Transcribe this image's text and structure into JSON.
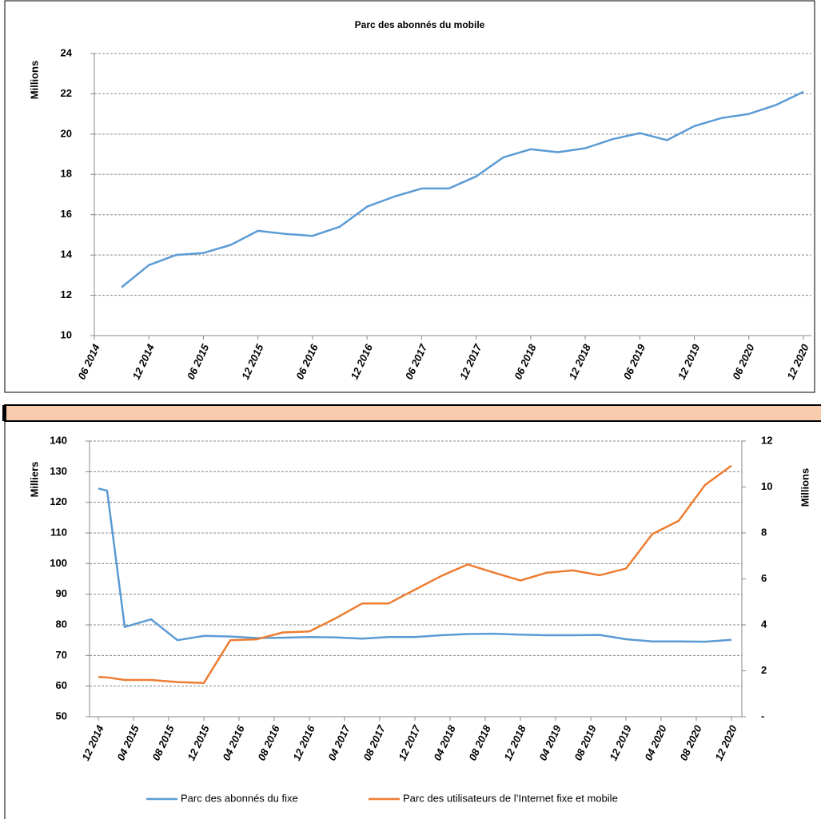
{
  "chart_data": [
    {
      "type": "line",
      "title": "Parc des abonnés du mobile",
      "ylabel": "Millions",
      "x": [
        "09 2014",
        "12 2014",
        "03 2015",
        "06 2015",
        "09 2015",
        "12 2015",
        "03 2016",
        "06 2016",
        "09 2016",
        "12 2016",
        "03 2017",
        "06 2017",
        "09 2017",
        "12 2017",
        "03 2018",
        "06 2018",
        "09 2018",
        "12 2018",
        "03 2019",
        "06 2019",
        "09 2019",
        "12 2019",
        "03 2020",
        "06 2020",
        "09 2020",
        "12 2020"
      ],
      "values": [
        12.4,
        13.5,
        14.0,
        14.1,
        14.5,
        15.2,
        15.05,
        14.95,
        15.4,
        16.4,
        16.9,
        17.3,
        17.3,
        17.9,
        18.85,
        19.25,
        19.1,
        19.3,
        19.75,
        20.05,
        19.7,
        20.4,
        20.8,
        21.0,
        21.45,
        22.1
      ],
      "color": "#5b9bd5",
      "xlim": [
        "06 2014",
        "12 2020"
      ],
      "xticks": [
        "06 2014",
        "12 2014",
        "06 2015",
        "12 2015",
        "06 2016",
        "12 2016",
        "06 2017",
        "12 2017",
        "06 2018",
        "12 2018",
        "06 2019",
        "12 2019",
        "06 2020",
        "12 2020"
      ],
      "ylim": [
        10,
        24
      ],
      "yticks": [
        10,
        12,
        14,
        16,
        18,
        20,
        22,
        24
      ],
      "grid": true
    },
    {
      "type": "line",
      "ylabel": "Milliers",
      "y2label": "Millions",
      "x": [
        "12 2014",
        "01 2015",
        "03 2015",
        "06 2015",
        "09 2015",
        "12 2015",
        "03 2016",
        "06 2016",
        "09 2016",
        "12 2016",
        "03 2017",
        "06 2017",
        "09 2017",
        "12 2017",
        "03 2018",
        "06 2018",
        "09 2018",
        "12 2018",
        "03 2019",
        "06 2019",
        "09 2019",
        "12 2019",
        "03 2020",
        "06 2020",
        "09 2020",
        "12 2020"
      ],
      "series": [
        {
          "name": "Parc des abonnés du fixe",
          "color": "#5b9bd5",
          "values": [
            124.5,
            123.8,
            79.3,
            81.8,
            75.0,
            76.4,
            76.2,
            75.7,
            75.8,
            76.0,
            75.9,
            75.5,
            76.0,
            76.0,
            76.6,
            77.0,
            77.1,
            76.8,
            76.6,
            76.6,
            76.7,
            75.3,
            74.6,
            74.6,
            74.5,
            75.1
          ]
        },
        {
          "name": "Parc des utilisateurs de l’Internet fixe et mobile",
          "color": "#ed7d31",
          "axis": "y2",
          "values": [
            1.73,
            1.71,
            1.6,
            1.6,
            1.51,
            1.47,
            3.33,
            3.37,
            3.67,
            3.71,
            4.29,
            4.93,
            4.93,
            5.53,
            6.13,
            6.63,
            6.27,
            5.93,
            6.27,
            6.37,
            6.16,
            6.45,
            7.95,
            8.53,
            10.09,
            10.93
          ]
        }
      ],
      "xlim": [
        "12 2014",
        "12 2020"
      ],
      "xticks": [
        "12 2014",
        "04 2015",
        "08 2015",
        "12 2015",
        "04 2016",
        "08 2016",
        "12 2016",
        "04 2017",
        "08 2017",
        "12 2017",
        "04 2018",
        "08 2018",
        "12 2018",
        "04 2019",
        "08 2019",
        "12 2019",
        "04 2020",
        "08 2020",
        "12 2020"
      ],
      "ylim": [
        50,
        140
      ],
      "yticks": [
        50,
        60,
        70,
        80,
        90,
        100,
        110,
        120,
        130,
        140
      ],
      "y2lim": [
        0,
        12
      ],
      "y2ticks": [
        {
          "value": 0,
          "label": "-"
        },
        2,
        4,
        6,
        8,
        10,
        12
      ],
      "grid": true,
      "legend": "bottom"
    }
  ]
}
